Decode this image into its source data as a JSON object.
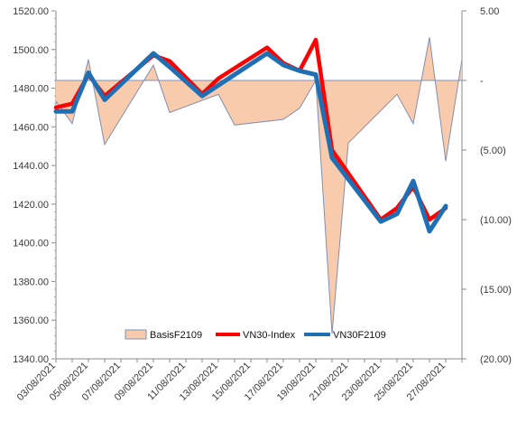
{
  "chart_data": {
    "type": "line",
    "x": [
      "03/08/2021",
      "04/08/2021",
      "05/08/2021",
      "06/08/2021",
      "09/08/2021",
      "10/08/2021",
      "11/08/2021",
      "12/08/2021",
      "13/08/2021",
      "16/08/2021",
      "17/08/2021",
      "18/08/2021",
      "19/08/2021",
      "20/08/2021",
      "23/08/2021",
      "24/08/2021",
      "25/08/2021",
      "26/08/2021",
      "27/08/2021",
      "30/08/2021"
    ],
    "x_tick_labels": [
      "03/08/2021",
      "05/08/2021",
      "07/08/2021",
      "09/08/2021",
      "11/08/2021",
      "13/08/2021",
      "15/08/2021",
      "17/08/2021",
      "19/08/2021",
      "21/08/2021",
      "23/08/2021",
      "25/08/2021",
      "27/08/2021"
    ],
    "x_range": [
      "03/08/2021",
      "28/08/2021"
    ],
    "left_axis": {
      "ylim": [
        1340,
        1520
      ],
      "ticks": [
        "1520.00",
        "1500.00",
        "1480.00",
        "1460.00",
        "1440.00",
        "1420.00",
        "1400.00",
        "1380.00",
        "1360.00",
        "1340.00"
      ]
    },
    "right_axis": {
      "ylim": [
        -20,
        5
      ],
      "ticks": [
        "5.00",
        "-",
        "(5.00)",
        "(10.00)",
        "(15.00)",
        "(20.00)"
      ]
    },
    "series": [
      {
        "name": "BasisF2109",
        "type": "area",
        "axis": "right",
        "color_fill": "#f8cbad",
        "color_line": "#7f8fb5",
        "points": [
          [
            "03/08/2021",
            -1.5
          ],
          [
            "04/08/2021",
            -3.1
          ],
          [
            "05/08/2021",
            1.5
          ],
          [
            "06/08/2021",
            -4.6
          ],
          [
            "09/08/2021",
            1.1
          ],
          [
            "10/08/2021",
            -2.3
          ],
          [
            "13/08/2021",
            -1.0
          ],
          [
            "14/08/2021",
            -3.2
          ],
          [
            "17/08/2021",
            -2.8
          ],
          [
            "18/08/2021",
            -2.0
          ],
          [
            "19/08/2021",
            0
          ],
          [
            "20/08/2021",
            -18.2
          ],
          [
            "21/08/2021",
            -4.5
          ],
          [
            "24/08/2021",
            -1.0
          ],
          [
            "25/08/2021",
            -3.1
          ],
          [
            "26/08/2021",
            3.1
          ],
          [
            "27/08/2021",
            -5.8
          ],
          [
            "28/08/2021",
            1.5
          ]
        ]
      },
      {
        "name": "VN30-Index",
        "type": "line",
        "axis": "left",
        "color": "#ff0000",
        "points": [
          [
            "03/08/2021",
            1470
          ],
          [
            "04/08/2021",
            1472
          ],
          [
            "05/08/2021",
            1487
          ],
          [
            "06/08/2021",
            1476
          ],
          [
            "09/08/2021",
            1497
          ],
          [
            "10/08/2021",
            1494
          ],
          [
            "12/08/2021",
            1477
          ],
          [
            "13/08/2021",
            1485
          ],
          [
            "16/08/2021",
            1501
          ],
          [
            "17/08/2021",
            1493
          ],
          [
            "18/08/2021",
            1489
          ],
          [
            "19/08/2021",
            1505
          ],
          [
            "20/08/2021",
            1448
          ],
          [
            "23/08/2021",
            1412
          ],
          [
            "24/08/2021",
            1418
          ],
          [
            "25/08/2021",
            1429
          ],
          [
            "26/08/2021",
            1412
          ],
          [
            "27/08/2021",
            1418
          ]
        ]
      },
      {
        "name": "VN30F2109",
        "type": "line",
        "axis": "left",
        "color": "#1f6fb4",
        "points": [
          [
            "03/08/2021",
            1468
          ],
          [
            "04/08/2021",
            1468
          ],
          [
            "05/08/2021",
            1488
          ],
          [
            "06/08/2021",
            1474
          ],
          [
            "09/08/2021",
            1498
          ],
          [
            "10/08/2021",
            1491
          ],
          [
            "12/08/2021",
            1476
          ],
          [
            "16/08/2021",
            1498
          ],
          [
            "17/08/2021",
            1492
          ],
          [
            "18/08/2021",
            1489
          ],
          [
            "19/08/2021",
            1487
          ],
          [
            "20/08/2021",
            1444
          ],
          [
            "23/08/2021",
            1411
          ],
          [
            "24/08/2021",
            1415
          ],
          [
            "25/08/2021",
            1432
          ],
          [
            "26/08/2021",
            1406
          ],
          [
            "27/08/2021",
            1419
          ]
        ]
      }
    ],
    "legend_position": "bottom-center",
    "gridlines": false
  }
}
